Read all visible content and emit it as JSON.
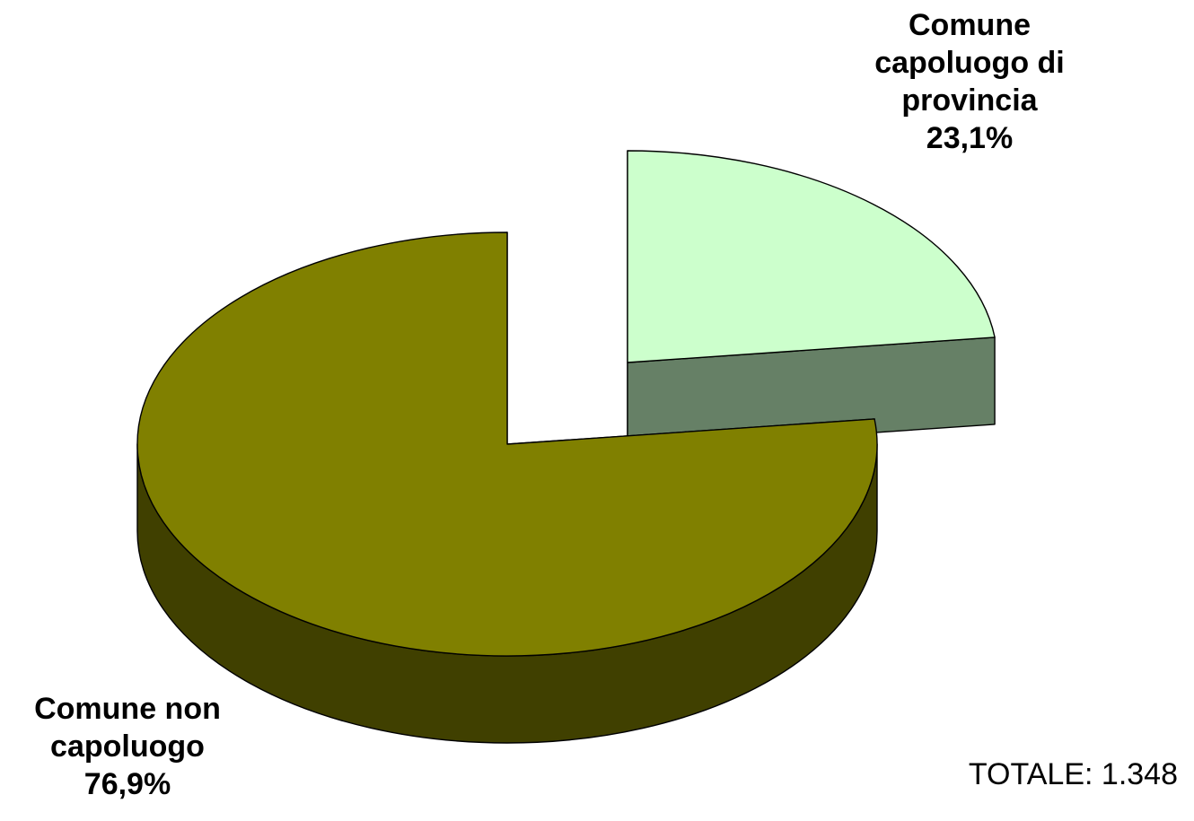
{
  "chart_data": {
    "type": "pie",
    "style": "3d-exploded",
    "slices": [
      {
        "name_lines": [
          "Comune",
          "capoluogo di",
          "provincia"
        ],
        "value": 23.1,
        "value_label": "23,1%",
        "colors": {
          "top": "#ccffcc",
          "side": "#668066"
        }
      },
      {
        "name_lines": [
          "Comune non",
          "capoluogo"
        ],
        "value": 76.9,
        "value_label": "76,9%",
        "colors": {
          "top": "#808000",
          "side": "#404000"
        }
      }
    ],
    "total_text": "TOTALE: 1.348"
  }
}
